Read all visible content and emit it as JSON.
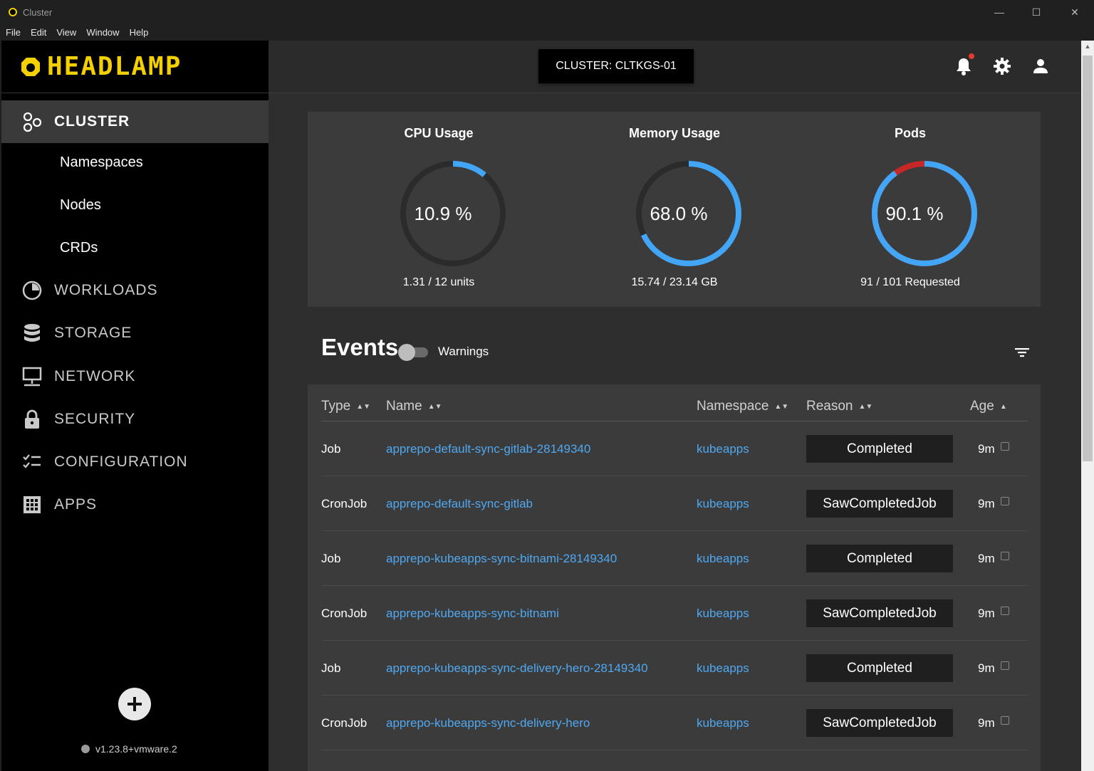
{
  "window": {
    "title": "Cluster"
  },
  "menu": [
    "File",
    "Edit",
    "View",
    "Window",
    "Help"
  ],
  "brand": {
    "logo_text": "HEADLAMP",
    "accent": "#f5d000"
  },
  "sidebar": {
    "active": {
      "label": "CLUSTER",
      "icon": "cluster-icon"
    },
    "subitems": [
      "Namespaces",
      "Nodes",
      "CRDs"
    ],
    "items": [
      {
        "label": "WORKLOADS",
        "icon": "workloads-icon"
      },
      {
        "label": "STORAGE",
        "icon": "storage-icon"
      },
      {
        "label": "NETWORK",
        "icon": "network-icon"
      },
      {
        "label": "SECURITY",
        "icon": "lock-icon"
      },
      {
        "label": "CONFIGURATION",
        "icon": "configuration-icon"
      },
      {
        "label": "APPS",
        "icon": "apps-grid-icon"
      }
    ],
    "version": "v1.23.8+vmware.2"
  },
  "topbar": {
    "cluster_label": "CLUSTER: CLTKGS-01"
  },
  "overview": {
    "cpu": {
      "title": "CPU Usage",
      "value": "10.9 %",
      "fraction": 0.109,
      "sub": "1.31 / 12 units"
    },
    "memory": {
      "title": "Memory Usage",
      "value": "68.0 %",
      "fraction": 0.68,
      "sub": "15.74 / 23.14 GB"
    },
    "pods": {
      "title": "Pods",
      "value": "90.1 %",
      "fraction": 0.901,
      "sub": "91 / 101 Requested"
    }
  },
  "events": {
    "title": "Events",
    "toggle_label": "Warnings",
    "columns": {
      "type": "Type",
      "name": "Name",
      "namespace": "Namespace",
      "reason": "Reason",
      "age": "Age"
    },
    "rows": [
      {
        "type": "Job",
        "name": "apprepo-default-sync-gitlab-28149340",
        "namespace": "kubeapps",
        "reason": "Completed",
        "age": "9m"
      },
      {
        "type": "CronJob",
        "name": "apprepo-default-sync-gitlab",
        "namespace": "kubeapps",
        "reason": "SawCompletedJob",
        "age": "9m"
      },
      {
        "type": "Job",
        "name": "apprepo-kubeapps-sync-bitnami-28149340",
        "namespace": "kubeapps",
        "reason": "Completed",
        "age": "9m"
      },
      {
        "type": "CronJob",
        "name": "apprepo-kubeapps-sync-bitnami",
        "namespace": "kubeapps",
        "reason": "SawCompletedJob",
        "age": "9m"
      },
      {
        "type": "Job",
        "name": "apprepo-kubeapps-sync-delivery-hero-28149340",
        "namespace": "kubeapps",
        "reason": "Completed",
        "age": "9m"
      },
      {
        "type": "CronJob",
        "name": "apprepo-kubeapps-sync-delivery-hero",
        "namespace": "kubeapps",
        "reason": "SawCompletedJob",
        "age": "9m"
      }
    ]
  },
  "colors": {
    "gauge_fill": "#42a5f5",
    "gauge_track": "#2b2b2b",
    "gauge_alert": "#c62828",
    "link": "#4fa8f0"
  }
}
